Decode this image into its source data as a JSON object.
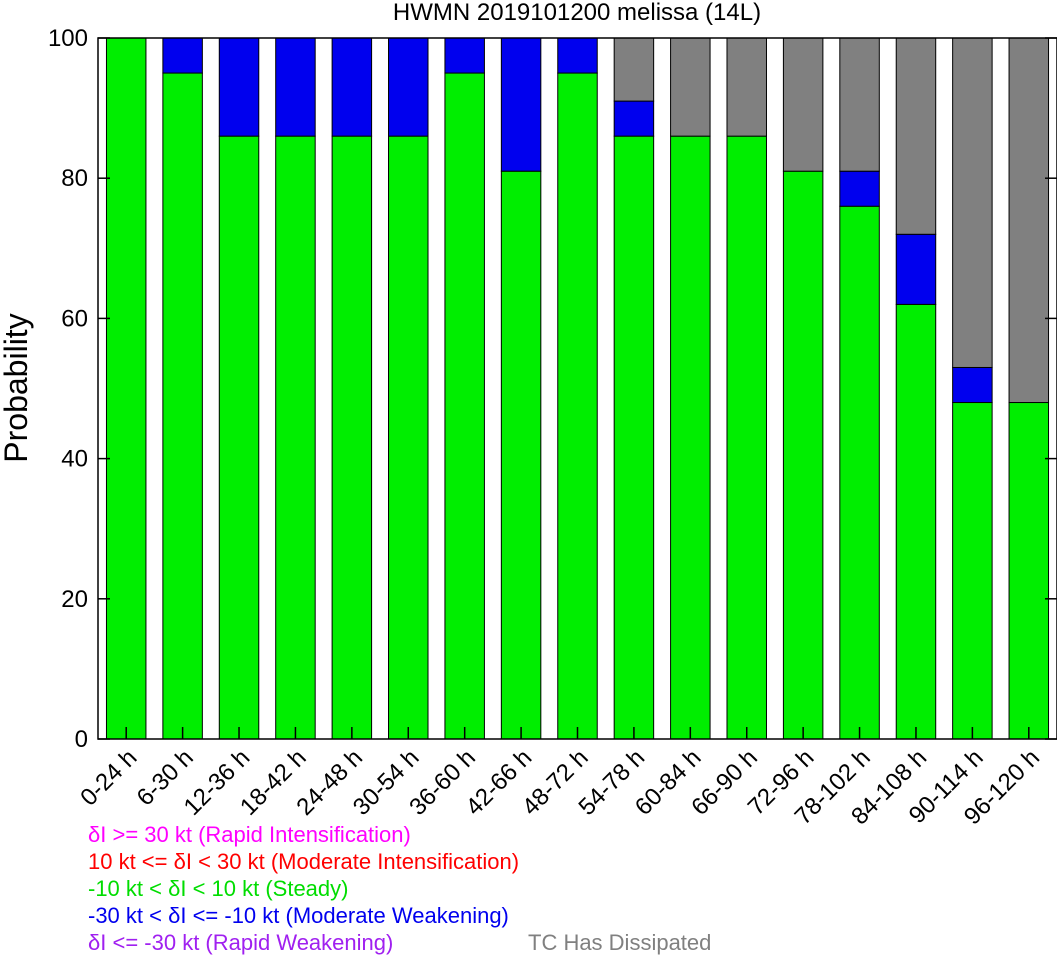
{
  "chart_data": {
    "type": "bar",
    "stacked": true,
    "title": "HWMN 2019101200 melissa (14L)",
    "xlabel": "",
    "ylabel": "Probability",
    "ylim": [
      0,
      100
    ],
    "yticks": [
      0,
      20,
      40,
      60,
      80,
      100
    ],
    "grid": false,
    "categories": [
      "0-24 h",
      "6-30 h",
      "12-36 h",
      "18-42 h",
      "24-48 h",
      "30-54 h",
      "36-60 h",
      "42-66 h",
      "48-72 h",
      "54-78 h",
      "60-84 h",
      "66-90 h",
      "72-96 h",
      "78-102 h",
      "84-108 h",
      "90-114 h",
      "96-120 h"
    ],
    "series": [
      {
        "name": "-10 kt < δI < 10 kt (Steady)",
        "color": "#00ee00",
        "values": [
          100,
          95,
          86,
          86,
          86,
          86,
          95,
          81,
          95,
          86,
          86,
          86,
          81,
          76,
          62,
          48,
          48
        ]
      },
      {
        "name": "-30 kt < δI <= -10 kt (Moderate Weakening)",
        "color": "#0000ee",
        "values": [
          0,
          5,
          14,
          14,
          14,
          14,
          5,
          19,
          5,
          5,
          0,
          0,
          0,
          5,
          10,
          5,
          0
        ]
      },
      {
        "name": "TC Has Dissipated",
        "color": "#808080",
        "values": [
          0,
          0,
          0,
          0,
          0,
          0,
          0,
          0,
          0,
          9,
          14,
          14,
          19,
          19,
          28,
          47,
          52
        ]
      }
    ],
    "legend": {
      "placement": "bottom-left",
      "entries": [
        {
          "label": "δI >= 30 kt (Rapid Intensification)",
          "color": "#ff00ff"
        },
        {
          "label": "10 kt <= δI < 30 kt (Moderate Intensification)",
          "color": "#ff0000"
        },
        {
          "label": "-10 kt < δI < 10 kt (Steady)",
          "color": "#00dd00"
        },
        {
          "label": "-30 kt < δI <= -10 kt (Moderate Weakening)",
          "color": "#0000ee"
        },
        {
          "label": "δI <= -30 kt (Rapid Weakening)",
          "color": "#a020f0"
        },
        {
          "label": "TC Has Dissipated",
          "color": "#808080"
        }
      ]
    }
  }
}
